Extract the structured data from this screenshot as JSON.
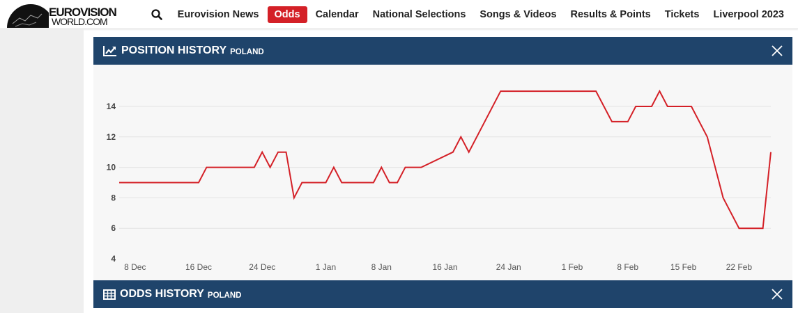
{
  "header": {
    "logo": {
      "line1": "EUROVISION",
      "line2": "WORLD.COM"
    },
    "nav": [
      {
        "label": "Eurovision News",
        "active": false
      },
      {
        "label": "Odds",
        "active": true
      },
      {
        "label": "Calendar",
        "active": false
      },
      {
        "label": "National Selections",
        "active": false
      },
      {
        "label": "Songs & Videos",
        "active": false
      },
      {
        "label": "Results & Points",
        "active": false
      },
      {
        "label": "Tickets",
        "active": false
      },
      {
        "label": "Liverpool 2023",
        "active": false
      }
    ],
    "accent": "#d42027"
  },
  "panels": {
    "position": {
      "title": "POSITION HISTORY",
      "subtitle": "POLAND",
      "icon": "line-chart-icon"
    },
    "odds": {
      "title": "ODDS HISTORY",
      "subtitle": "POLAND",
      "icon": "table-icon"
    }
  },
  "chart_data": {
    "type": "line",
    "title": "",
    "xlabel": "",
    "ylabel": "",
    "ylim": [
      4,
      16
    ],
    "yticks": [
      4,
      6,
      8,
      10,
      12,
      14
    ],
    "grid": true,
    "line_color": "#d42027",
    "xticks": [
      {
        "date": "2022-12-08",
        "label": "8 Dec"
      },
      {
        "date": "2022-12-16",
        "label": "16 Dec"
      },
      {
        "date": "2022-12-24",
        "label": "24 Dec"
      },
      {
        "date": "2023-01-01",
        "label": "1 Jan"
      },
      {
        "date": "2023-01-08",
        "label": "8 Jan"
      },
      {
        "date": "2023-01-16",
        "label": "16 Jan"
      },
      {
        "date": "2023-01-24",
        "label": "24 Jan"
      },
      {
        "date": "2023-02-01",
        "label": "1 Feb"
      },
      {
        "date": "2023-02-08",
        "label": "8 Feb"
      },
      {
        "date": "2023-02-15",
        "label": "15 Feb"
      },
      {
        "date": "2023-02-22",
        "label": "22 Feb"
      }
    ],
    "series": [
      {
        "points": [
          [
            "2022-12-06",
            9
          ],
          [
            "2022-12-16",
            9
          ],
          [
            "2022-12-17",
            10
          ],
          [
            "2022-12-23",
            10
          ],
          [
            "2022-12-24",
            11
          ],
          [
            "2022-12-25",
            10
          ],
          [
            "2022-12-26",
            11
          ],
          [
            "2022-12-27",
            11
          ],
          [
            "2022-12-28",
            8
          ],
          [
            "2022-12-29",
            9
          ],
          [
            "2023-01-01",
            9
          ],
          [
            "2023-01-02",
            10
          ],
          [
            "2023-01-03",
            9
          ],
          [
            "2023-01-07",
            9
          ],
          [
            "2023-01-08",
            10
          ],
          [
            "2023-01-09",
            9
          ],
          [
            "2023-01-10",
            9
          ],
          [
            "2023-01-11",
            10
          ],
          [
            "2023-01-13",
            10
          ],
          [
            "2023-01-17",
            11
          ],
          [
            "2023-01-18",
            12
          ],
          [
            "2023-01-19",
            11
          ],
          [
            "2023-01-23",
            15
          ],
          [
            "2023-02-04",
            15
          ],
          [
            "2023-02-06",
            13
          ],
          [
            "2023-02-08",
            13
          ],
          [
            "2023-02-09",
            14
          ],
          [
            "2023-02-11",
            14
          ],
          [
            "2023-02-12",
            15
          ],
          [
            "2023-02-13",
            14
          ],
          [
            "2023-02-16",
            14
          ],
          [
            "2023-02-18",
            12
          ],
          [
            "2023-02-20",
            8
          ],
          [
            "2023-02-22",
            6
          ],
          [
            "2023-02-25",
            6
          ],
          [
            "2023-02-26",
            11
          ]
        ]
      }
    ]
  }
}
